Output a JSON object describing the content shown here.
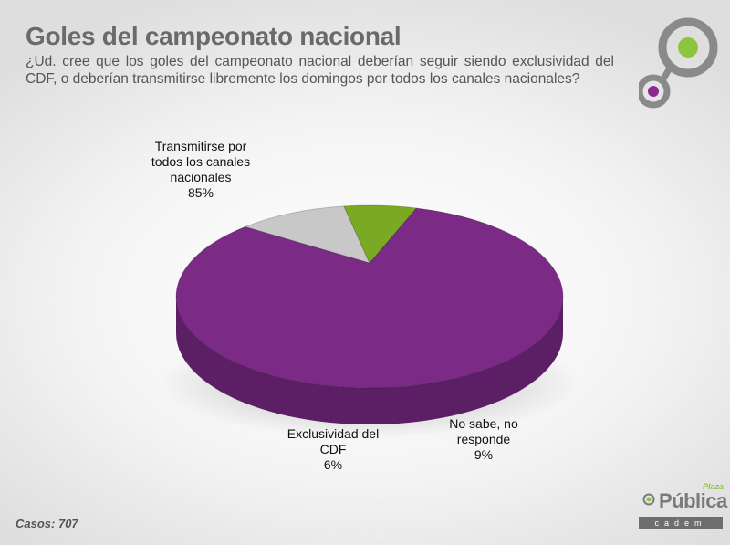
{
  "header": {
    "title": "Goles del campeonato nacional",
    "subtitle": "¿Ud. cree que los goles del campeonato nacional deberían seguir siendo exclusividad del CDF, o deberían transmitirse libremente los domingos por todos los canales nacionales?"
  },
  "chart_data": {
    "type": "pie",
    "style": "3d",
    "title": "",
    "categories": [
      "Transmitirse por todos los canales nacionales",
      "Exclusividad del CDF",
      "No sabe, no responde"
    ],
    "values": [
      85,
      6,
      9
    ],
    "labels": [
      {
        "text": "Transmitirse por\ntodos los canales\nnacionales",
        "value": "85%"
      },
      {
        "text": "Exclusividad del\nCDF",
        "value": "6%"
      },
      {
        "text": "No sabe, no\nresponde",
        "value": "9%"
      }
    ],
    "colors": [
      "#7b2a86",
      "#7aaa24",
      "#c8c8c8"
    ],
    "side_colors": [
      "#5c1f66",
      "#4e6f14",
      "#6f6f6f"
    ]
  },
  "footer": {
    "casos": "Casos: 707"
  },
  "logo": {
    "plaza": "Plaza",
    "main": "Pública",
    "sub": "cadem",
    "accent_green": "#8cc63f",
    "accent_purple": "#8a2a8f"
  }
}
